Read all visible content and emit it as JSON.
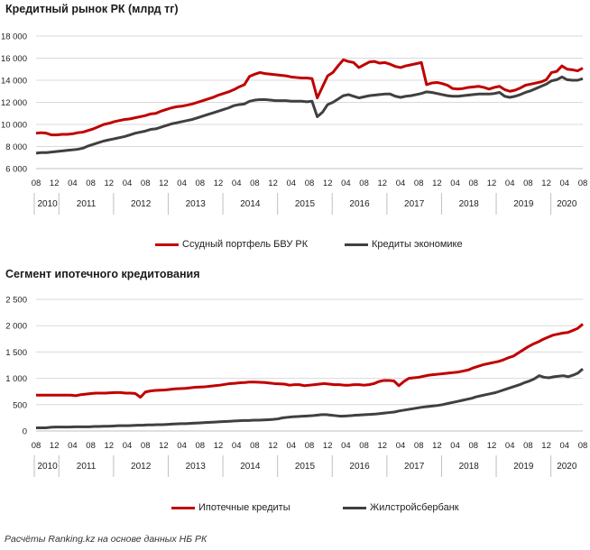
{
  "footnote": "Расчёты Ranking.kz на основе данных НБ РК",
  "colors": {
    "red": "#c00000",
    "gray": "#404040",
    "grid": "#d9d9d9",
    "axis": "#bfbfbf"
  },
  "chart_data": [
    {
      "type": "line",
      "title": "Кредитный рынок РК (млрд тг)",
      "ylim": [
        6000,
        18000
      ],
      "yticks": [
        6000,
        8000,
        10000,
        12000,
        14000,
        16000,
        18000
      ],
      "ytick_labels": [
        "6 000",
        "8 000",
        "10 000",
        "12 000",
        "14 000",
        "16 000",
        "18 000"
      ],
      "month_tick_labels": [
        "08",
        "12",
        "04",
        "08",
        "12",
        "04",
        "08",
        "12",
        "04",
        "08",
        "12",
        "04",
        "08",
        "12",
        "04",
        "08",
        "12",
        "04",
        "08",
        "12",
        "04",
        "08",
        "12",
        "04",
        "08",
        "12",
        "04",
        "08",
        "12",
        "04",
        "08"
      ],
      "year_labels": [
        "2010",
        "2011",
        "2012",
        "2013",
        "2014",
        "2015",
        "2016",
        "2017",
        "2018",
        "2019",
        "2020"
      ],
      "x_start": "2010-08",
      "x_end": "2020-08",
      "legend": "bottom",
      "series": [
        {
          "name": "Ссудный портфель БВУ РК",
          "color": "#c00000",
          "values": [
            9200,
            9250,
            9200,
            9050,
            9050,
            9100,
            9100,
            9150,
            9250,
            9300,
            9450,
            9600,
            9800,
            10000,
            10100,
            10250,
            10350,
            10450,
            10500,
            10600,
            10700,
            10800,
            10950,
            11000,
            11200,
            11350,
            11500,
            11600,
            11650,
            11750,
            11850,
            12000,
            12150,
            12300,
            12450,
            12650,
            12800,
            12950,
            13150,
            13400,
            13600,
            14350,
            14550,
            14700,
            14600,
            14550,
            14500,
            14450,
            14400,
            14300,
            14250,
            14200,
            14200,
            14150,
            12400,
            13400,
            14400,
            14700,
            15300,
            15850,
            15700,
            15600,
            15150,
            15400,
            15650,
            15700,
            15550,
            15600,
            15450,
            15250,
            15150,
            15300,
            15400,
            15500,
            15600,
            13600,
            13750,
            13800,
            13700,
            13550,
            13250,
            13200,
            13250,
            13350,
            13400,
            13450,
            13350,
            13200,
            13350,
            13450,
            13150,
            13000,
            13100,
            13300,
            13550,
            13650,
            13750,
            13850,
            14050,
            14700,
            14800,
            15300,
            15000,
            14950,
            14850,
            15100
          ]
        },
        {
          "name": "Кредиты экономике",
          "color": "#404040",
          "values": [
            7400,
            7450,
            7450,
            7500,
            7550,
            7600,
            7650,
            7700,
            7750,
            7850,
            8050,
            8200,
            8350,
            8500,
            8600,
            8700,
            8800,
            8900,
            9050,
            9200,
            9300,
            9400,
            9550,
            9600,
            9750,
            9900,
            10050,
            10150,
            10250,
            10350,
            10450,
            10600,
            10750,
            10900,
            11050,
            11200,
            11350,
            11500,
            11700,
            11800,
            11850,
            12100,
            12200,
            12250,
            12250,
            12200,
            12150,
            12150,
            12150,
            12100,
            12100,
            12100,
            12050,
            12100,
            10700,
            11100,
            11800,
            12000,
            12300,
            12600,
            12700,
            12550,
            12400,
            12500,
            12600,
            12650,
            12700,
            12750,
            12750,
            12550,
            12450,
            12550,
            12600,
            12700,
            12800,
            12950,
            12900,
            12800,
            12700,
            12600,
            12550,
            12550,
            12600,
            12650,
            12700,
            12750,
            12750,
            12750,
            12800,
            12900,
            12550,
            12450,
            12550,
            12700,
            12900,
            13050,
            13250,
            13450,
            13650,
            13950,
            14050,
            14300,
            14050,
            14000,
            14000,
            14150
          ]
        }
      ]
    },
    {
      "type": "line",
      "title": "Сегмент ипотечного  кредитования",
      "ylim": [
        0,
        2500
      ],
      "yticks": [
        0,
        500,
        1000,
        1500,
        2000,
        2500
      ],
      "ytick_labels": [
        "0",
        "500",
        "1 000",
        "1 500",
        "2 000",
        "2 500"
      ],
      "month_tick_labels": [
        "08",
        "12",
        "04",
        "08",
        "12",
        "04",
        "08",
        "12",
        "04",
        "08",
        "12",
        "04",
        "08",
        "12",
        "04",
        "08",
        "12",
        "04",
        "08",
        "12",
        "04",
        "08",
        "12",
        "04",
        "08",
        "12",
        "04",
        "08",
        "12",
        "04",
        "08"
      ],
      "year_labels": [
        "2010",
        "2011",
        "2012",
        "2013",
        "2014",
        "2015",
        "2016",
        "2017",
        "2018",
        "2019",
        "2020"
      ],
      "x_start": "2010-08",
      "x_end": "2020-08",
      "legend": "bottom",
      "series": [
        {
          "name": "Ипотечные кредиты",
          "color": "#c00000",
          "values": [
            680,
            680,
            680,
            680,
            680,
            680,
            680,
            680,
            670,
            690,
            700,
            710,
            720,
            720,
            720,
            725,
            730,
            730,
            720,
            720,
            710,
            640,
            740,
            760,
            770,
            775,
            780,
            790,
            800,
            805,
            810,
            820,
            830,
            835,
            840,
            850,
            860,
            870,
            885,
            900,
            905,
            915,
            920,
            930,
            930,
            925,
            920,
            910,
            900,
            895,
            890,
            870,
            880,
            880,
            860,
            870,
            880,
            890,
            900,
            890,
            880,
            880,
            870,
            870,
            880,
            880,
            870,
            880,
            900,
            940,
            960,
            960,
            950,
            860,
            940,
            1000,
            1010,
            1020,
            1040,
            1060,
            1070,
            1080,
            1090,
            1100,
            1110,
            1120,
            1140,
            1160,
            1200,
            1230,
            1260,
            1280,
            1300,
            1320,
            1350,
            1390,
            1420,
            1480,
            1540,
            1600,
            1650,
            1690,
            1740,
            1780,
            1820,
            1840,
            1860,
            1870,
            1910,
            1950,
            2030
          ]
        },
        {
          "name": "Жилстройсбербанк",
          "color": "#404040",
          "values": [
            60,
            60,
            60,
            70,
            75,
            75,
            75,
            75,
            80,
            80,
            80,
            80,
            85,
            85,
            90,
            90,
            95,
            100,
            100,
            100,
            105,
            110,
            110,
            115,
            115,
            120,
            120,
            125,
            130,
            135,
            140,
            140,
            145,
            150,
            155,
            160,
            165,
            170,
            175,
            180,
            185,
            190,
            195,
            200,
            200,
            205,
            205,
            210,
            215,
            220,
            230,
            250,
            260,
            270,
            275,
            280,
            285,
            290,
            300,
            310,
            310,
            300,
            290,
            280,
            285,
            290,
            300,
            305,
            310,
            315,
            320,
            330,
            340,
            350,
            360,
            380,
            395,
            410,
            425,
            440,
            455,
            465,
            475,
            485,
            500,
            520,
            540,
            560,
            580,
            600,
            620,
            650,
            670,
            690,
            710,
            730,
            760,
            790,
            820,
            850,
            880,
            920,
            950,
            990,
            1050,
            1020,
            1010,
            1030,
            1040,
            1050,
            1030,
            1060,
            1100,
            1180
          ]
        }
      ]
    }
  ]
}
